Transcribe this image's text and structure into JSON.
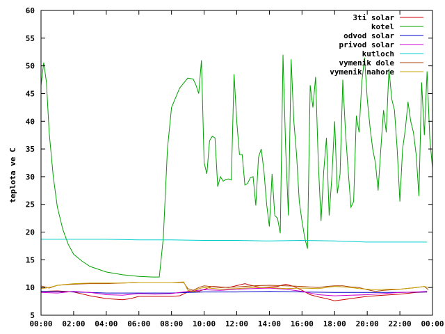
{
  "chart_data": {
    "type": "line",
    "title": "",
    "xlabel": "",
    "ylabel": "teplota ve C",
    "x_unit": "time",
    "xlim": [
      "00:00",
      "24:00"
    ],
    "ylim": [
      5,
      60
    ],
    "x_tick_labels": [
      "00:00",
      "02:00",
      "04:00",
      "06:00",
      "08:00",
      "10:00",
      "12:00",
      "14:00",
      "16:00",
      "18:00",
      "20:00",
      "22:00",
      "00:00"
    ],
    "y_tick_labels": [
      "5",
      "10",
      "15",
      "20",
      "25",
      "30",
      "35",
      "40",
      "45",
      "50",
      "55",
      "60"
    ],
    "grid": false,
    "legend_position": "top-right",
    "series": [
      {
        "name": "3ti solar",
        "color": "#cc0000",
        "points": [
          [
            "00:00",
            9.3
          ],
          [
            "01:00",
            9.4
          ],
          [
            "02:00",
            9.2
          ],
          [
            "03:00",
            8.5
          ],
          [
            "04:00",
            8.0
          ],
          [
            "05:00",
            7.8
          ],
          [
            "05:30",
            8.0
          ],
          [
            "06:00",
            8.4
          ],
          [
            "07:00",
            8.4
          ],
          [
            "08:00",
            8.4
          ],
          [
            "08:30",
            8.5
          ],
          [
            "09:00",
            9.2
          ],
          [
            "09:40",
            9.3
          ],
          [
            "10:30",
            10.2
          ],
          [
            "11:30",
            10.0
          ],
          [
            "12:30",
            10.7
          ],
          [
            "13:00",
            10.3
          ],
          [
            "13:30",
            10.0
          ],
          [
            "14:30",
            10.2
          ],
          [
            "15:00",
            10.6
          ],
          [
            "15:30",
            10.2
          ],
          [
            "16:00",
            9.5
          ],
          [
            "16:30",
            8.7
          ],
          [
            "17:00",
            8.3
          ],
          [
            "17:30",
            8.0
          ],
          [
            "18:00",
            7.6
          ],
          [
            "18:30",
            7.8
          ],
          [
            "19:00",
            8.0
          ],
          [
            "20:00",
            8.4
          ],
          [
            "21:00",
            8.6
          ],
          [
            "22:00",
            8.8
          ],
          [
            "23:00",
            9.1
          ],
          [
            "23:40",
            9.2
          ]
        ]
      },
      {
        "name": "kotel",
        "color": "#00a000",
        "points": [
          [
            "00:00",
            46.5
          ],
          [
            "00:10",
            50.6
          ],
          [
            "00:20",
            47.0
          ],
          [
            "00:30",
            38.0
          ],
          [
            "00:45",
            30.0
          ],
          [
            "01:00",
            24.5
          ],
          [
            "01:20",
            20.5
          ],
          [
            "01:40",
            17.8
          ],
          [
            "02:00",
            16.0
          ],
          [
            "02:30",
            14.8
          ],
          [
            "03:00",
            13.8
          ],
          [
            "04:00",
            12.8
          ],
          [
            "05:00",
            12.3
          ],
          [
            "06:00",
            12.0
          ],
          [
            "06:50",
            11.9
          ],
          [
            "07:15",
            11.9
          ],
          [
            "07:30",
            19.0
          ],
          [
            "07:45",
            35.0
          ],
          [
            "08:00",
            42.5
          ],
          [
            "08:30",
            46.0
          ],
          [
            "09:00",
            47.8
          ],
          [
            "09:20",
            47.6
          ],
          [
            "09:30",
            46.5
          ],
          [
            "09:40",
            45.0
          ],
          [
            "09:50",
            51.0
          ],
          [
            "10:00",
            32.5
          ],
          [
            "10:10",
            30.5
          ],
          [
            "10:20",
            36.5
          ],
          [
            "10:30",
            37.3
          ],
          [
            "10:40",
            37.0
          ],
          [
            "10:50",
            28.2
          ],
          [
            "11:00",
            30.0
          ],
          [
            "11:10",
            29.2
          ],
          [
            "11:20",
            29.5
          ],
          [
            "11:30",
            29.6
          ],
          [
            "11:40",
            29.4
          ],
          [
            "11:50",
            48.5
          ],
          [
            "12:00",
            40.0
          ],
          [
            "12:10",
            34.0
          ],
          [
            "12:20",
            34.0
          ],
          [
            "12:30",
            28.5
          ],
          [
            "12:40",
            28.8
          ],
          [
            "12:50",
            29.8
          ],
          [
            "13:00",
            30.0
          ],
          [
            "13:10",
            24.8
          ],
          [
            "13:20",
            33.5
          ],
          [
            "13:30",
            35.0
          ],
          [
            "13:40",
            31.0
          ],
          [
            "13:50",
            25.0
          ],
          [
            "14:00",
            21.0
          ],
          [
            "14:10",
            30.5
          ],
          [
            "14:20",
            23.0
          ],
          [
            "14:30",
            22.5
          ],
          [
            "14:40",
            19.8
          ],
          [
            "14:50",
            52.0
          ],
          [
            "15:00",
            35.0
          ],
          [
            "15:10",
            23.0
          ],
          [
            "15:20",
            51.2
          ],
          [
            "15:30",
            40.0
          ],
          [
            "15:40",
            34.0
          ],
          [
            "15:50",
            25.5
          ],
          [
            "16:00",
            22.0
          ],
          [
            "16:10",
            19.0
          ],
          [
            "16:20",
            17.0
          ],
          [
            "16:30",
            46.5
          ],
          [
            "16:40",
            42.5
          ],
          [
            "16:50",
            48.0
          ],
          [
            "17:00",
            32.5
          ],
          [
            "17:10",
            22.0
          ],
          [
            "17:20",
            31.0
          ],
          [
            "17:30",
            37.0
          ],
          [
            "17:40",
            23.0
          ],
          [
            "17:50",
            30.0
          ],
          [
            "18:00",
            40.0
          ],
          [
            "18:10",
            27.0
          ],
          [
            "18:20",
            30.5
          ],
          [
            "18:30",
            47.5
          ],
          [
            "18:40",
            38.0
          ],
          [
            "18:50",
            31.0
          ],
          [
            "19:00",
            24.5
          ],
          [
            "19:10",
            25.5
          ],
          [
            "19:20",
            41.0
          ],
          [
            "19:30",
            38.0
          ],
          [
            "19:40",
            47.0
          ],
          [
            "19:50",
            51.5
          ],
          [
            "20:00",
            44.0
          ],
          [
            "20:10",
            39.0
          ],
          [
            "20:20",
            35.0
          ],
          [
            "20:30",
            32.5
          ],
          [
            "20:40",
            27.5
          ],
          [
            "20:50",
            35.0
          ],
          [
            "21:00",
            42.0
          ],
          [
            "21:10",
            38.0
          ],
          [
            "21:20",
            49.5
          ],
          [
            "21:30",
            44.0
          ],
          [
            "21:40",
            42.0
          ],
          [
            "21:50",
            35.0
          ],
          [
            "22:00",
            25.5
          ],
          [
            "22:10",
            35.0
          ],
          [
            "22:20",
            38.5
          ],
          [
            "22:30",
            43.5
          ],
          [
            "22:40",
            40.0
          ],
          [
            "22:50",
            38.0
          ],
          [
            "23:00",
            34.0
          ],
          [
            "23:10",
            26.5
          ],
          [
            "23:20",
            47.0
          ],
          [
            "23:30",
            37.5
          ],
          [
            "23:40",
            49.0
          ],
          [
            "23:50",
            37.0
          ],
          [
            "24:00",
            31.5
          ]
        ]
      },
      {
        "name": "odvod solar",
        "color": "#0000cc",
        "points": [
          [
            "00:00",
            9.3
          ],
          [
            "02:00",
            9.2
          ],
          [
            "04:00",
            9.0
          ],
          [
            "06:00",
            9.0
          ],
          [
            "08:00",
            9.0
          ],
          [
            "09:00",
            9.1
          ],
          [
            "10:00",
            9.2
          ],
          [
            "12:00",
            9.2
          ],
          [
            "14:00",
            9.3
          ],
          [
            "16:00",
            9.2
          ],
          [
            "18:00",
            9.1
          ],
          [
            "20:00",
            9.1
          ],
          [
            "22:00",
            9.1
          ],
          [
            "23:40",
            9.2
          ]
        ]
      },
      {
        "name": "privod solar",
        "color": "#cc00cc",
        "points": [
          [
            "00:00",
            9.1
          ],
          [
            "01:00",
            9.0
          ],
          [
            "02:00",
            9.3
          ],
          [
            "03:00",
            9.1
          ],
          [
            "04:00",
            8.7
          ],
          [
            "05:00",
            8.6
          ],
          [
            "06:00",
            8.9
          ],
          [
            "07:00",
            8.8
          ],
          [
            "08:00",
            8.9
          ],
          [
            "09:00",
            9.3
          ],
          [
            "10:00",
            9.6
          ],
          [
            "11:00",
            9.5
          ],
          [
            "12:00",
            9.7
          ],
          [
            "13:00",
            9.8
          ],
          [
            "14:00",
            9.9
          ],
          [
            "15:00",
            9.7
          ],
          [
            "16:00",
            9.3
          ],
          [
            "16:30",
            9.0
          ],
          [
            "17:00",
            8.7
          ],
          [
            "18:00",
            8.5
          ],
          [
            "19:00",
            8.6
          ],
          [
            "20:00",
            8.7
          ],
          [
            "21:00",
            8.9
          ],
          [
            "22:00",
            9.1
          ],
          [
            "23:00",
            9.2
          ],
          [
            "23:40",
            9.3
          ]
        ]
      },
      {
        "name": "kutloch",
        "color": "#00cccc",
        "points": [
          [
            "00:00",
            18.7
          ],
          [
            "02:00",
            18.7
          ],
          [
            "04:00",
            18.7
          ],
          [
            "06:00",
            18.6
          ],
          [
            "08:00",
            18.6
          ],
          [
            "10:00",
            18.5
          ],
          [
            "12:00",
            18.5
          ],
          [
            "14:00",
            18.4
          ],
          [
            "16:00",
            18.5
          ],
          [
            "18:00",
            18.4
          ],
          [
            "20:00",
            18.2
          ],
          [
            "22:00",
            18.2
          ],
          [
            "23:40",
            18.2
          ]
        ]
      },
      {
        "name": "vymenik dole",
        "color": "#aa4400",
        "points": [
          [
            "00:00",
            10.3
          ],
          [
            "00:30",
            9.9
          ],
          [
            "01:00",
            10.4
          ],
          [
            "02:00",
            10.6
          ],
          [
            "03:00",
            10.7
          ],
          [
            "04:00",
            10.7
          ],
          [
            "05:00",
            10.8
          ],
          [
            "06:00",
            10.9
          ],
          [
            "07:00",
            10.9
          ],
          [
            "08:00",
            10.9
          ],
          [
            "08:45",
            10.9
          ],
          [
            "09:00",
            9.8
          ],
          [
            "09:20",
            9.5
          ],
          [
            "09:40",
            10.0
          ],
          [
            "10:00",
            10.3
          ],
          [
            "11:00",
            10.0
          ],
          [
            "12:00",
            10.1
          ],
          [
            "13:00",
            10.3
          ],
          [
            "14:00",
            10.4
          ],
          [
            "15:00",
            10.3
          ],
          [
            "16:00",
            10.2
          ],
          [
            "17:00",
            10.0
          ],
          [
            "17:30",
            10.2
          ],
          [
            "18:00",
            10.3
          ],
          [
            "18:30",
            10.3
          ],
          [
            "19:00",
            10.1
          ],
          [
            "19:30",
            10.0
          ],
          [
            "20:00",
            9.6
          ],
          [
            "20:30",
            9.3
          ],
          [
            "21:00",
            9.5
          ],
          [
            "22:00",
            9.7
          ],
          [
            "23:00",
            10.0
          ],
          [
            "23:30",
            10.2
          ],
          [
            "23:45",
            9.6
          ]
        ]
      },
      {
        "name": "vymenik nahore",
        "color": "#c8a000",
        "points": [
          [
            "00:00",
            9.8
          ],
          [
            "00:30",
            10.0
          ],
          [
            "01:00",
            10.4
          ],
          [
            "02:00",
            10.7
          ],
          [
            "03:00",
            10.8
          ],
          [
            "04:00",
            10.8
          ],
          [
            "05:00",
            10.8
          ],
          [
            "06:00",
            10.9
          ],
          [
            "07:00",
            10.9
          ],
          [
            "08:00",
            10.9
          ],
          [
            "08:45",
            11.0
          ],
          [
            "09:00",
            9.5
          ],
          [
            "09:20",
            9.3
          ],
          [
            "09:40",
            9.8
          ],
          [
            "10:00",
            10.0
          ],
          [
            "11:00",
            9.7
          ],
          [
            "12:00",
            9.8
          ],
          [
            "13:00",
            10.0
          ],
          [
            "14:00",
            10.0
          ],
          [
            "15:00",
            9.8
          ],
          [
            "16:00",
            9.9
          ],
          [
            "17:00",
            9.8
          ],
          [
            "17:30",
            10.0
          ],
          [
            "18:00",
            10.2
          ],
          [
            "18:30",
            10.1
          ],
          [
            "19:00",
            10.0
          ],
          [
            "19:30",
            9.8
          ],
          [
            "20:00",
            9.7
          ],
          [
            "20:30",
            9.6
          ],
          [
            "21:00",
            9.7
          ],
          [
            "22:00",
            9.7
          ],
          [
            "23:00",
            10.0
          ],
          [
            "23:30",
            10.2
          ],
          [
            "23:45",
            10.0
          ]
        ]
      }
    ]
  }
}
